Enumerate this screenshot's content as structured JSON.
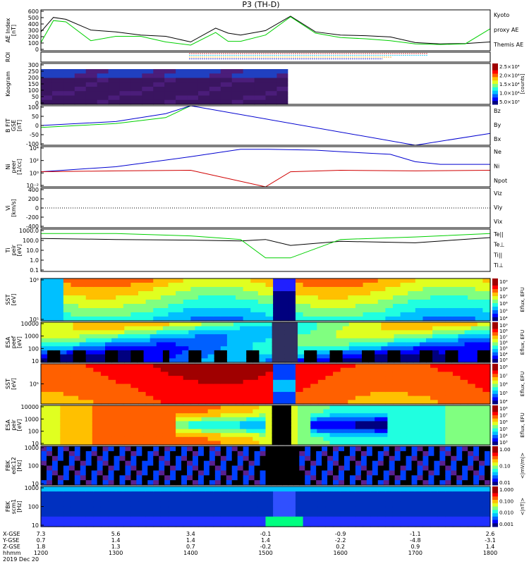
{
  "title": "P3 (TH-D)",
  "colors": {
    "red": "#d00000",
    "green": "#00d000",
    "blue": "#0000d0",
    "black": "#000000",
    "cyan": "#00c8ff"
  },
  "x_axis": {
    "rows": [
      {
        "label": "X-GSE",
        "values": [
          "7.3",
          "5.6",
          "3.4",
          "-0.1",
          "-0.9",
          "-1.1",
          "2.6"
        ]
      },
      {
        "label": "Y-GSE",
        "values": [
          "0.7",
          "1.4",
          "1.4",
          "1.4",
          "-2.2",
          "-4.8",
          "-3.1"
        ]
      },
      {
        "label": "Z-GSE",
        "values": [
          "1.8",
          "1.3",
          "0.7",
          "-0.2",
          "0.2",
          "0.9",
          "1.4"
        ]
      },
      {
        "label": "hhmm",
        "values": [
          "1200",
          "1300",
          "1400",
          "1500",
          "1600",
          "1700",
          "1800"
        ]
      }
    ],
    "date": "2019 Dec 20"
  },
  "panels": [
    {
      "id": "ae",
      "ylabel": [
        "AE Index",
        "[nT]"
      ],
      "yticks": [
        "600",
        "500",
        "400",
        "300",
        "200",
        "100",
        "0"
      ],
      "legend": [
        {
          "text": "Kyoto",
          "color": "green"
        },
        {
          "text": "proxy AE",
          "color": "green"
        },
        {
          "text": "Themis AE",
          "color": "black"
        }
      ]
    },
    {
      "id": "roi",
      "ylabel": [
        "ROI"
      ],
      "yticks": [],
      "legend": []
    },
    {
      "id": "keogram",
      "ylabel": [
        "Keogram"
      ],
      "yticks": [
        "300",
        "250",
        "200",
        "150",
        "100",
        "50",
        "0"
      ],
      "colorbar": {
        "label": "[counts]",
        "ticks": [
          "2.5×10⁴",
          "2.0×10⁴",
          "1.5×10⁴",
          "1.0×10⁴",
          "5.0×10³"
        ]
      }
    },
    {
      "id": "bfield",
      "ylabel": [
        "B FIT",
        "GSE",
        "[nT]"
      ],
      "yticks": [
        "100",
        "50",
        "0",
        "-50",
        "-100"
      ],
      "legend": [
        {
          "text": "Bz",
          "color": "red"
        },
        {
          "text": "By",
          "color": "green"
        },
        {
          "text": "Bx",
          "color": "blue"
        }
      ]
    },
    {
      "id": "density",
      "ylabel": [
        "Ni",
        "peer",
        "[1/cc]"
      ],
      "yticks": [
        "10⁴",
        "10²",
        "10⁰",
        "10⁻²"
      ],
      "legend": [
        {
          "text": "Ne",
          "color": "red"
        },
        {
          "text": "Ni",
          "color": "black"
        },
        {
          "text": "Npot",
          "color": "blue"
        }
      ]
    },
    {
      "id": "velocity",
      "ylabel": [
        "Vi",
        "[km/s]"
      ],
      "yticks": [
        "400",
        "200",
        "0",
        "-200",
        "-400"
      ],
      "legend": [
        {
          "text": "Viz",
          "color": "red"
        },
        {
          "text": "Viy",
          "color": "green"
        },
        {
          "text": "Vix",
          "color": "blue"
        }
      ]
    },
    {
      "id": "temp",
      "ylabel": [
        "Ti",
        "peir",
        "[eV]"
      ],
      "yticks": [
        "1000.0",
        "100.0",
        "10.0",
        "1.0",
        "0.1"
      ],
      "legend": [
        {
          "text": "Te||",
          "color": "black"
        },
        {
          "text": "Te⊥",
          "color": "red"
        },
        {
          "text": "Ti||",
          "color": "green"
        },
        {
          "text": "Ti⊥",
          "color": "blue"
        }
      ]
    },
    {
      "id": "sst_e",
      "ylabel": [
        "SST",
        "[eV]"
      ],
      "yticks": [
        "10⁶",
        "10⁵"
      ],
      "colorbar": {
        "label": "Eflux, EFU",
        "ticks": [
          "10⁹",
          "10⁸",
          "10⁷",
          "10⁶",
          "10⁵",
          "10⁴"
        ]
      }
    },
    {
      "id": "esa_e",
      "ylabel": [
        "ESA",
        "peef",
        "[eV]"
      ],
      "yticks": [
        "10000",
        "1000",
        "100",
        "10"
      ],
      "colorbar": {
        "label": "Eflux, EFU",
        "ticks": [
          "10⁹",
          "10⁸",
          "10⁷",
          "10⁶",
          "10⁵",
          "10⁴",
          "10³"
        ]
      }
    },
    {
      "id": "sst_i",
      "ylabel": [
        "SST",
        "[eV]"
      ],
      "yticks": [
        "10⁵"
      ],
      "colorbar": {
        "label": "Eflux, EFU",
        "ticks": [
          "10⁸",
          "10⁷",
          "10⁶",
          "10⁵",
          "10⁴"
        ]
      }
    },
    {
      "id": "esa_i",
      "ylabel": [
        "ESA",
        "peir",
        "[eV]"
      ],
      "yticks": [
        "10000",
        "1000",
        "100",
        "10"
      ],
      "colorbar": {
        "label": "Eflux, EFU",
        "ticks": [
          "10⁸",
          "10⁷",
          "10⁶",
          "10⁵",
          "10⁴",
          "10³"
        ]
      }
    },
    {
      "id": "fbk_e",
      "ylabel": [
        "FBK",
        "edc12",
        "[Hz]"
      ],
      "yticks": [
        "1000",
        "100",
        "10"
      ],
      "colorbar": {
        "label": "<|mV/m|>",
        "ticks": [
          "1.00",
          "0.10",
          "0.01"
        ]
      }
    },
    {
      "id": "fbk_b",
      "ylabel": [
        "FBK",
        "scm1",
        "[Hz]"
      ],
      "yticks": [
        "1000",
        "100",
        "10"
      ],
      "colorbar": {
        "label": "<|nT|>",
        "ticks": [
          "1.000",
          "0.100",
          "0.010",
          "0.001"
        ]
      }
    }
  ],
  "chart_data": {
    "type": "line",
    "title": "P3 (TH-D)",
    "x_units": "hhmm UT",
    "x_range": [
      "1200",
      "1800"
    ],
    "series": [
      {
        "name": "Themis AE",
        "panel": "ae",
        "color": "black",
        "x": [
          "1200",
          "1210",
          "1220",
          "1240",
          "1300",
          "1320",
          "1340",
          "1400",
          "1420",
          "1430",
          "1440",
          "1500",
          "1520",
          "1540",
          "1600",
          "1620",
          "1640",
          "1700",
          "1720",
          "1740",
          "1800"
        ],
        "values": [
          300,
          530,
          500,
          330,
          300,
          250,
          230,
          140,
          360,
          280,
          250,
          320,
          550,
          300,
          250,
          240,
          220,
          130,
          110,
          115,
          140
        ]
      },
      {
        "name": "Kyoto proxy AE",
        "panel": "ae",
        "color": "green",
        "x": [
          "1200",
          "1210",
          "1220",
          "1240",
          "1300",
          "1320",
          "1340",
          "1400",
          "1420",
          "1430",
          "1440",
          "1500",
          "1520",
          "1540",
          "1600",
          "1620",
          "1640",
          "1700",
          "1720",
          "1740",
          "1800"
        ],
        "values": [
          130,
          480,
          460,
          160,
          230,
          230,
          140,
          90,
          290,
          150,
          150,
          250,
          540,
          280,
          210,
          190,
          160,
          110,
          100,
          110,
          350
        ]
      },
      {
        "name": "Bz",
        "panel": "bfield",
        "color": "red",
        "x": [
          "1200",
          "1300",
          "1400"
        ],
        "values": [
          100,
          100,
          100
        ]
      },
      {
        "name": "By",
        "panel": "bfield",
        "color": "green",
        "x": [
          "1200",
          "1300",
          "1340",
          "1400"
        ],
        "values": [
          -10,
          10,
          40,
          100
        ]
      },
      {
        "name": "Bx",
        "panel": "bfield",
        "color": "blue",
        "x": [
          "1200",
          "1300",
          "1340",
          "1400",
          "1700",
          "1800"
        ],
        "values": [
          0,
          20,
          60,
          100,
          -100,
          -40
        ]
      },
      {
        "name": "Npot",
        "panel": "density",
        "color": "blue",
        "x": [
          "1200",
          "1300",
          "1400",
          "1440",
          "1500",
          "1540",
          "1600",
          "1640",
          "1700",
          "1720",
          "1800"
        ],
        "values": [
          1,
          10,
          1000,
          30000,
          30000,
          20000,
          10000,
          3000,
          100,
          30,
          30
        ]
      },
      {
        "name": "Ne",
        "panel": "density",
        "color": "red",
        "x": [
          "1200",
          "1300",
          "1400",
          "1500",
          "1520",
          "1600",
          "1700",
          "1800"
        ],
        "values": [
          1,
          1.5,
          2,
          0.001,
          1,
          2,
          1.5,
          2
        ]
      },
      {
        "name": "Te||",
        "panel": "temp",
        "color": "black",
        "x": [
          "1200",
          "1300",
          "1400",
          "1440",
          "1500",
          "1520",
          "1600",
          "1700",
          "1800"
        ],
        "values": [
          400,
          300,
          250,
          200,
          300,
          60,
          180,
          120,
          500
        ]
      },
      {
        "name": "Ti||",
        "panel": "temp",
        "color": "green",
        "x": [
          "1200",
          "1300",
          "1400",
          "1440",
          "1500",
          "1520",
          "1600",
          "1700",
          "1800"
        ],
        "values": [
          1500,
          1500,
          800,
          300,
          2,
          2,
          300,
          600,
          1500
        ]
      }
    ]
  }
}
